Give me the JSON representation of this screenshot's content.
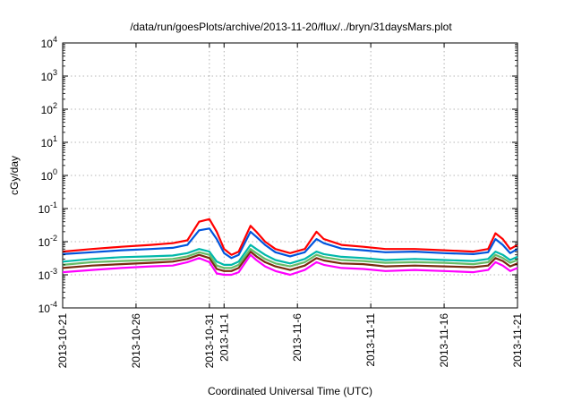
{
  "chart_data": {
    "type": "line",
    "title": "/data/run/goesPlots/archive/2013-11-20/flux/../bryn/31daysMars.plot",
    "xlabel": "Coordinated Universal Time (UTC)",
    "ylabel": "cGy/day",
    "yscale": "log",
    "ylim": [
      0.0001,
      10000
    ],
    "xlim_days": [
      0,
      31
    ],
    "grid": true,
    "legend": "none",
    "y_ticks": [
      {
        "value": 0.0001,
        "mant": "10",
        "exp": "-4"
      },
      {
        "value": 0.001,
        "mant": "10",
        "exp": "-3"
      },
      {
        "value": 0.01,
        "mant": "10",
        "exp": "-2"
      },
      {
        "value": 0.1,
        "mant": "10",
        "exp": "-1"
      },
      {
        "value": 1,
        "mant": "10",
        "exp": "0"
      },
      {
        "value": 10,
        "mant": "10",
        "exp": "1"
      },
      {
        "value": 100,
        "mant": "10",
        "exp": "2"
      },
      {
        "value": 1000,
        "mant": "10",
        "exp": "3"
      },
      {
        "value": 10000,
        "mant": "10",
        "exp": "4"
      }
    ],
    "x_ticks": [
      {
        "day": 0,
        "label": "2013-10-21"
      },
      {
        "day": 5,
        "label": "2013-10-26"
      },
      {
        "day": 10,
        "label": "2013-10-31"
      },
      {
        "day": 11,
        "label": "2013-11-1"
      },
      {
        "day": 16,
        "label": "2013-11-6"
      },
      {
        "day": 21,
        "label": "2013-11-11"
      },
      {
        "day": 26,
        "label": "2013-11-16"
      },
      {
        "day": 31,
        "label": "2013-11-21"
      }
    ],
    "x_points_days": [
      0,
      2,
      4,
      6,
      7.5,
      8.5,
      9.3,
      10.0,
      10.5,
      11,
      11.5,
      12,
      12.8,
      13.2,
      13.8,
      14.5,
      15.5,
      16.5,
      17.3,
      17.8,
      19,
      20.5,
      22,
      24,
      26,
      28,
      29,
      29.5,
      30,
      30.5,
      31
    ],
    "series": [
      {
        "color": "#ff0000",
        "values": [
          0.005,
          0.006,
          0.007,
          0.008,
          0.009,
          0.011,
          0.04,
          0.048,
          0.02,
          0.006,
          0.004,
          0.005,
          0.03,
          0.02,
          0.01,
          0.006,
          0.0045,
          0.006,
          0.02,
          0.012,
          0.008,
          0.007,
          0.006,
          0.006,
          0.0055,
          0.005,
          0.006,
          0.018,
          0.012,
          0.006,
          0.008
        ]
      },
      {
        "color": "#0055dd",
        "values": [
          0.0042,
          0.0048,
          0.0055,
          0.006,
          0.0065,
          0.008,
          0.022,
          0.025,
          0.012,
          0.0045,
          0.0032,
          0.004,
          0.02,
          0.014,
          0.008,
          0.0048,
          0.0036,
          0.0048,
          0.012,
          0.009,
          0.0062,
          0.0055,
          0.0048,
          0.005,
          0.0045,
          0.0042,
          0.0048,
          0.012,
          0.008,
          0.0045,
          0.006
        ]
      },
      {
        "color": "#00b8aa",
        "values": [
          0.0025,
          0.003,
          0.0034,
          0.0036,
          0.0038,
          0.0045,
          0.006,
          0.005,
          0.0025,
          0.002,
          0.002,
          0.0025,
          0.008,
          0.006,
          0.004,
          0.0028,
          0.0022,
          0.003,
          0.005,
          0.0042,
          0.0035,
          0.0032,
          0.0028,
          0.003,
          0.0028,
          0.0026,
          0.003,
          0.005,
          0.004,
          0.0028,
          0.0035
        ]
      },
      {
        "color": "#66bb66",
        "values": [
          0.002,
          0.0024,
          0.0026,
          0.0028,
          0.003,
          0.0036,
          0.0048,
          0.004,
          0.0019,
          0.0016,
          0.0016,
          0.002,
          0.006,
          0.0045,
          0.003,
          0.0022,
          0.0018,
          0.0024,
          0.004,
          0.0034,
          0.0028,
          0.0026,
          0.0023,
          0.0024,
          0.0023,
          0.0021,
          0.0024,
          0.004,
          0.0032,
          0.0023,
          0.0028
        ]
      },
      {
        "color": "#7a2a10",
        "values": [
          0.0016,
          0.0019,
          0.0021,
          0.0023,
          0.0025,
          0.003,
          0.004,
          0.0032,
          0.0015,
          0.0013,
          0.0013,
          0.0016,
          0.005,
          0.0036,
          0.0024,
          0.0018,
          0.0014,
          0.0019,
          0.0032,
          0.0027,
          0.0022,
          0.0021,
          0.0018,
          0.0019,
          0.0018,
          0.0017,
          0.0019,
          0.0032,
          0.0026,
          0.0018,
          0.0022
        ]
      },
      {
        "color": "#ff00ff",
        "values": [
          0.0012,
          0.0014,
          0.0016,
          0.0018,
          0.0019,
          0.0024,
          0.0032,
          0.0024,
          0.0011,
          0.001,
          0.001,
          0.0012,
          0.004,
          0.0028,
          0.0018,
          0.0013,
          0.001,
          0.0014,
          0.0024,
          0.002,
          0.0016,
          0.0015,
          0.0013,
          0.0014,
          0.0013,
          0.0012,
          0.0014,
          0.0024,
          0.0019,
          0.0013,
          0.0016
        ]
      }
    ]
  }
}
